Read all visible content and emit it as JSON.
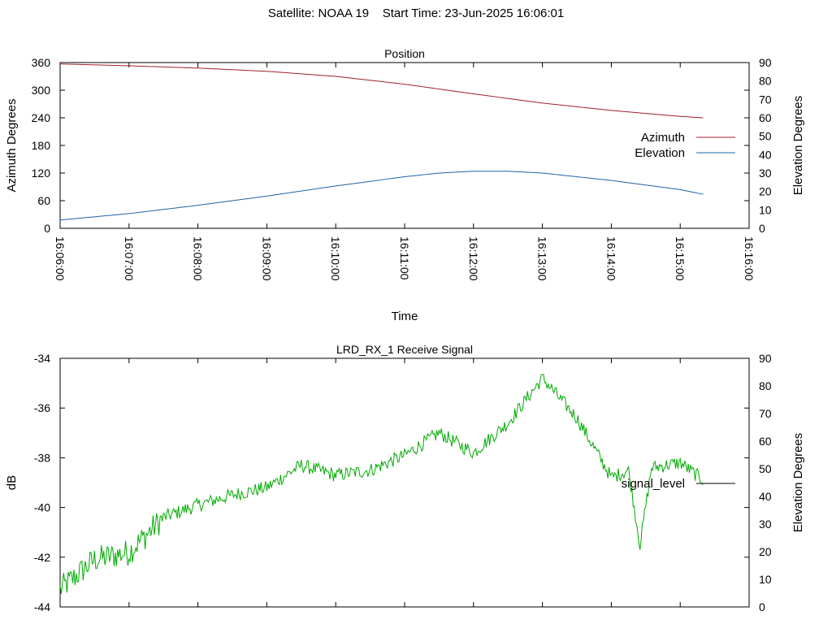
{
  "header": {
    "title": "Satellite: NOAA 19    Start Time: 23-Jun-2025 16:06:01"
  },
  "colors": {
    "azimuth": "#a0202a",
    "elevation": "#1f64a8",
    "signal": "#00aa00",
    "legend_signal": "#000000",
    "axis": "#000000"
  },
  "chart_data": [
    {
      "type": "line",
      "title": "Position",
      "xlabel": "Time",
      "ylabel": "Azimuth Degrees",
      "y2label": "Elevation Degrees",
      "ylim": [
        0,
        360
      ],
      "y2lim": [
        0,
        90
      ],
      "yticks": [
        "0",
        "60",
        "120",
        "180",
        "240",
        "300",
        "360"
      ],
      "y2ticks": [
        "0",
        "10",
        "20",
        "30",
        "40",
        "50",
        "60",
        "70",
        "80",
        "90"
      ],
      "xlim": [
        "16:06:00",
        "16:16:00"
      ],
      "xticks": [
        "16:06:00",
        "16:07:00",
        "16:08:00",
        "16:09:00",
        "16:10:00",
        "16:11:00",
        "16:12:00",
        "16:13:00",
        "16:14:00",
        "16:15:00",
        "16:16:00"
      ],
      "legend_position": "right",
      "grid": false,
      "series": [
        {
          "name": "Azimuth",
          "axis": "left",
          "x": [
            "16:06:00",
            "16:07:00",
            "16:08:00",
            "16:09:00",
            "16:10:00",
            "16:11:00",
            "16:12:00",
            "16:13:00",
            "16:14:00",
            "16:15:00",
            "16:15:20"
          ],
          "values": [
            357,
            353,
            348,
            341,
            330,
            313,
            292,
            272,
            256,
            243,
            240
          ]
        },
        {
          "name": "Elevation",
          "axis": "right",
          "x": [
            "16:06:00",
            "16:07:00",
            "16:08:00",
            "16:09:00",
            "16:10:00",
            "16:11:00",
            "16:11:30",
            "16:12:00",
            "16:12:30",
            "16:13:00",
            "16:14:00",
            "16:15:00",
            "16:15:20"
          ],
          "values": [
            4.5,
            8,
            12.5,
            17.5,
            23,
            28,
            30,
            31,
            31,
            30,
            26,
            21,
            18.5
          ]
        }
      ]
    },
    {
      "type": "line",
      "title": "LRD_RX_1 Receive Signal",
      "ylabel": "dB",
      "y2label": "Elevation Degrees",
      "ylim": [
        -44,
        -34
      ],
      "y2lim": [
        0,
        90
      ],
      "yticks": [
        "-44",
        "-42",
        "-40",
        "-38",
        "-36",
        "-34"
      ],
      "y2ticks": [
        "0",
        "10",
        "20",
        "30",
        "40",
        "50",
        "60",
        "70",
        "80",
        "90"
      ],
      "xlim": [
        "16:06:00",
        "16:16:00"
      ],
      "legend_position": "right",
      "grid": false,
      "series": [
        {
          "name": "signal_level",
          "x": [
            "16:06:00",
            "16:06:30",
            "16:07:00",
            "16:07:30",
            "16:08:00",
            "16:08:30",
            "16:09:00",
            "16:09:30",
            "16:10:00",
            "16:10:30",
            "16:11:00",
            "16:11:30",
            "16:12:00",
            "16:12:30",
            "16:13:00",
            "16:13:30",
            "16:14:00",
            "16:14:15",
            "16:14:25",
            "16:14:35",
            "16:15:00",
            "16:15:20"
          ],
          "values": [
            -43.3,
            -42.1,
            -41.8,
            -40.4,
            -39.9,
            -39.5,
            -39.2,
            -38.3,
            -38.7,
            -38.5,
            -37.9,
            -37.0,
            -37.8,
            -36.6,
            -34.8,
            -36.4,
            -38.8,
            -38.5,
            -41.5,
            -38.4,
            -38.2,
            -38.9
          ]
        }
      ]
    }
  ]
}
